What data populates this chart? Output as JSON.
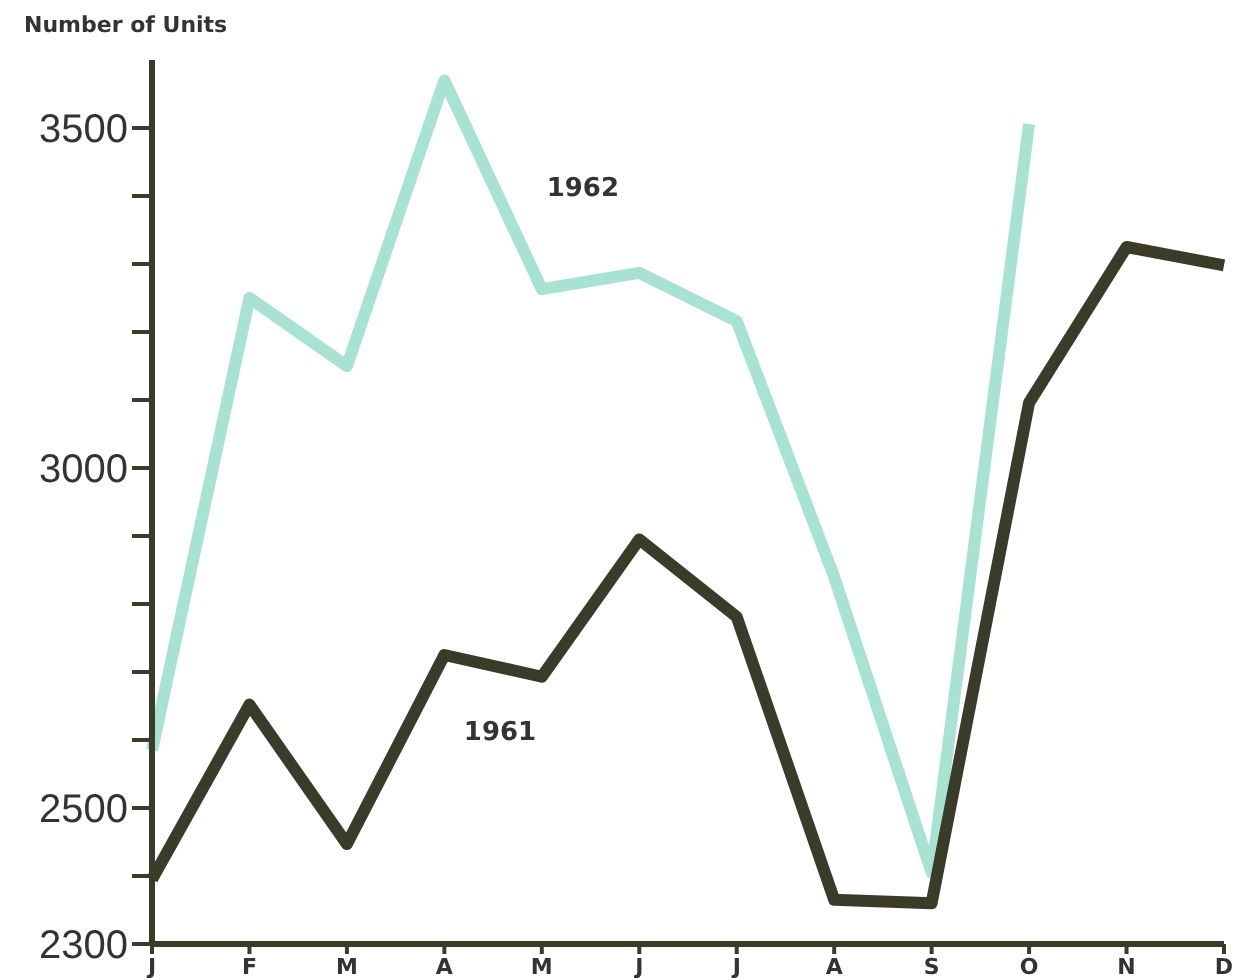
{
  "chart_data": {
    "type": "line",
    "ylabel": "Number of Units",
    "categories": [
      "J",
      "F",
      "M",
      "A",
      "M",
      "J",
      "J",
      "A",
      "S",
      "O",
      "N",
      "D"
    ],
    "series": [
      {
        "name": "1962",
        "color": "#a8e2d2",
        "values": [
          2585,
          3250,
          3150,
          3570,
          3263,
          3287,
          3216,
          2840,
          2405,
          3506,
          null,
          null
        ]
      },
      {
        "name": "1961",
        "color": "#3b3b2a",
        "values": [
          2395,
          2652,
          2447,
          2725,
          2693,
          2895,
          2781,
          2365,
          2360,
          3096,
          3325,
          3298
        ]
      }
    ],
    "ylim": [
      2300,
      3600
    ],
    "yticks": [
      2300,
      {
        "value": 2400,
        "label": null
      },
      2500,
      {
        "value": 2600,
        "label": null
      },
      {
        "value": 2700,
        "label": null
      },
      {
        "value": 2800,
        "label": null
      },
      {
        "value": 2900,
        "label": null
      },
      3000,
      {
        "value": 3100,
        "label": null
      },
      {
        "value": 3200,
        "label": null
      },
      {
        "value": 3300,
        "label": null
      },
      {
        "value": 3400,
        "label": null
      },
      3500
    ],
    "grid": false,
    "legend": false,
    "marker": "none",
    "line_style": "solid"
  }
}
